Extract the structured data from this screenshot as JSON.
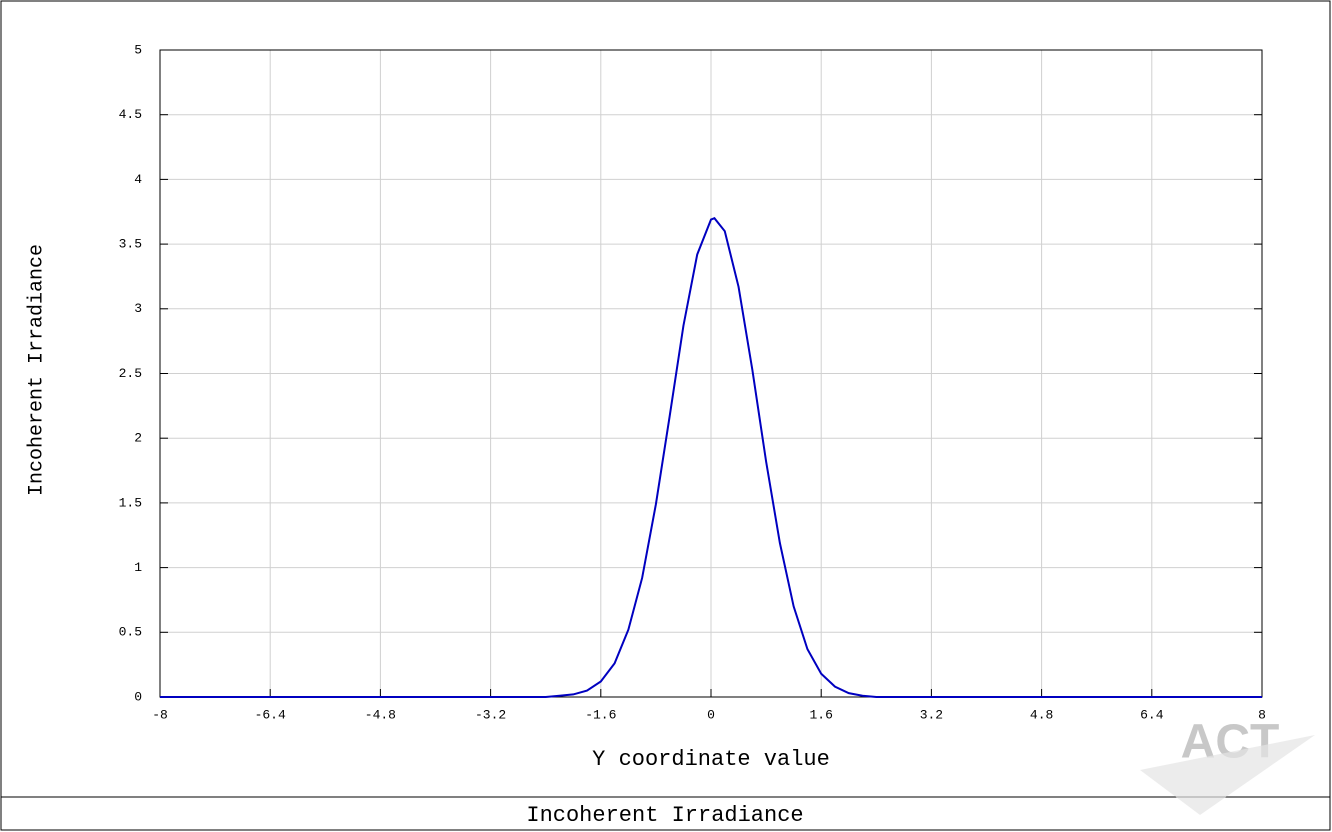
{
  "chart_data": {
    "type": "line",
    "title": "Incoherent Irradiance",
    "x_label": "Y coordinate value",
    "y_label": "Incoherent Irradiance",
    "watermark": "ACT",
    "x": [
      -8,
      -3.2,
      -2.4,
      -2.2,
      -2.0,
      -1.8,
      -1.6,
      -1.4,
      -1.2,
      -1.0,
      -0.8,
      -0.6,
      -0.4,
      -0.2,
      0,
      0.05,
      0.2,
      0.4,
      0.6,
      0.8,
      1.0,
      1.2,
      1.4,
      1.6,
      1.8,
      2.0,
      2.2,
      2.4,
      3.2,
      8
    ],
    "values": [
      0,
      0,
      0,
      0.01,
      0.02,
      0.05,
      0.12,
      0.26,
      0.52,
      0.92,
      1.49,
      2.17,
      2.87,
      3.42,
      3.69,
      3.7,
      3.6,
      3.17,
      2.53,
      1.82,
      1.19,
      0.7,
      0.37,
      0.18,
      0.08,
      0.03,
      0.01,
      0,
      0,
      0
    ],
    "color": "#0000c0",
    "xlim": [
      -8,
      8
    ],
    "xticks": [
      -8,
      -6.4,
      -4.8,
      -3.2,
      -1.6,
      0,
      1.6,
      3.2,
      4.8,
      6.4,
      8
    ],
    "ylim": [
      0,
      5
    ],
    "yticks": [
      0,
      0.5,
      1,
      1.5,
      2,
      2.5,
      3,
      3.5,
      4,
      4.5,
      5
    ],
    "grid": true
  }
}
